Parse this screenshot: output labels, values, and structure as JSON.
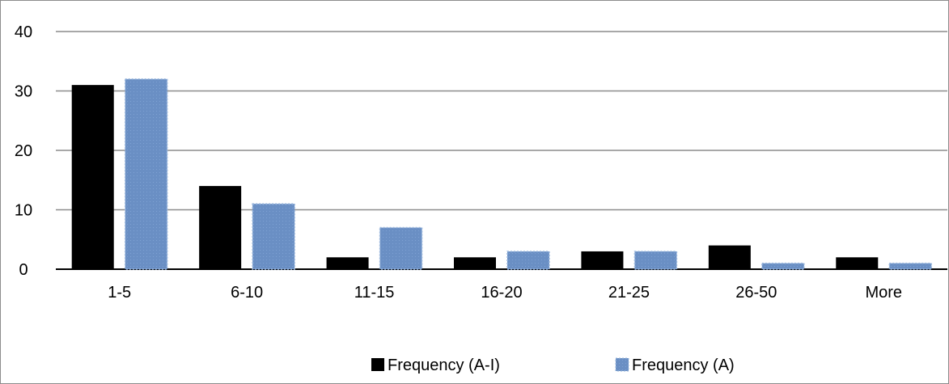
{
  "chart_data": {
    "type": "bar",
    "title": "",
    "xlabel": "",
    "ylabel": "",
    "categories": [
      "1-5",
      "6-10",
      "11-15",
      "16-20",
      "21-25",
      "26-50",
      "More"
    ],
    "series": [
      {
        "name": "Frequency (A-I)",
        "values": [
          31,
          14,
          2,
          2,
          3,
          4,
          2
        ],
        "color": "#000000",
        "style": "solid"
      },
      {
        "name": "Frequency (A)",
        "values": [
          32,
          11,
          7,
          3,
          3,
          1,
          1
        ],
        "color": "#6a8fc4",
        "style": "dotted-border"
      }
    ],
    "ylim": [
      0,
      40
    ],
    "yticks": [
      0,
      10,
      20,
      30,
      40
    ],
    "grid": true,
    "legend_position": "bottom"
  }
}
